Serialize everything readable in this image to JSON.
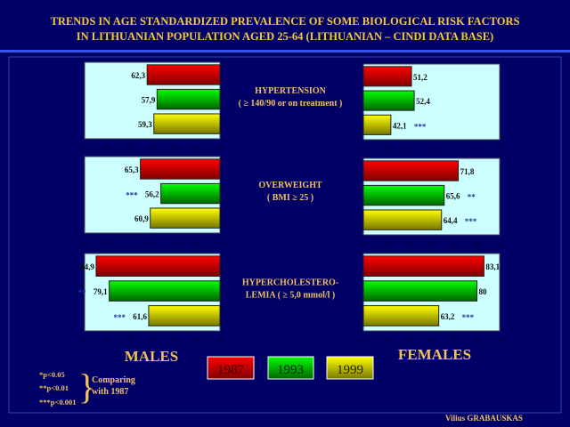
{
  "title": {
    "line1": "TRENDS IN AGE STANDARDIZED PREVALENCE OF SOME BIOLOGICAL RISK FACTORS",
    "line2": "IN LITHUANIAN POPULATION AGED 25-64 (LITHUANIAN – CINDI DATA BASE)"
  },
  "colors": {
    "background": "#000066",
    "title": "#f5c842",
    "y1987": "#e00000",
    "y1993": "#00dd00",
    "y1999": "#eeee00",
    "plot_bg": "#ccffff"
  },
  "labels": {
    "males": "MALES",
    "females": "FEMALES",
    "sig1": "*p<0.05",
    "sig2": "**p<0.01",
    "sig3": "***p<0.001",
    "compare1": "Comparing",
    "compare2": "with 1987",
    "author": "Vilius GRABAUSKAS"
  },
  "legend": [
    "1987",
    "1993",
    "1999"
  ],
  "chart_data": [
    {
      "type": "bar",
      "orientation": "horizontal",
      "panel": "males",
      "factor": "hypertension",
      "label1": "HYPERTENSION",
      "label2": "( ≥ 140/90 or on treatment )",
      "categories": [
        "1987",
        "1993",
        "1999"
      ],
      "values": [
        62.3,
        57.9,
        59.3
      ],
      "value_labels": [
        "62,3",
        "57,9",
        "59,3"
      ],
      "significance": [
        "",
        "",
        ""
      ],
      "xlim": [
        90,
        30
      ],
      "ticks": [
        90,
        80,
        70,
        60,
        50,
        40,
        30
      ]
    },
    {
      "type": "bar",
      "orientation": "horizontal",
      "panel": "males",
      "factor": "overweight",
      "label1": "OVERWEIGHT",
      "label2": "( BMI ≥ 25 )",
      "categories": [
        "1987",
        "1993",
        "1999"
      ],
      "values": [
        65.3,
        56.2,
        60.9
      ],
      "value_labels": [
        "65,3",
        "56,2",
        "60,9"
      ],
      "significance": [
        "",
        "***",
        ""
      ],
      "xlim": [
        90,
        30
      ],
      "ticks": [
        90,
        80,
        70,
        60,
        50,
        40,
        30
      ]
    },
    {
      "type": "bar",
      "orientation": "horizontal",
      "panel": "males",
      "factor": "hypercholesterolemia",
      "label1": "HYPERCHOLESTERO-",
      "label2": "LEMIA   ( ≥ 5,0 mmol/l )",
      "categories": [
        "1987",
        "1993",
        "1999"
      ],
      "values": [
        84.9,
        79.1,
        61.6
      ],
      "value_labels": [
        "84,9",
        "79,1",
        "61,6"
      ],
      "significance": [
        "",
        "**",
        "***"
      ],
      "xlim": [
        90,
        30
      ],
      "ticks": [
        90,
        80,
        70,
        60,
        50,
        40,
        30
      ]
    },
    {
      "type": "bar",
      "orientation": "horizontal",
      "panel": "females",
      "factor": "hypertension",
      "categories": [
        "1987",
        "1993",
        "1999"
      ],
      "values": [
        51.2,
        52.4,
        42.1
      ],
      "value_labels": [
        "51,2",
        "52,4",
        "42,1"
      ],
      "significance": [
        "",
        "",
        "***"
      ],
      "xlim": [
        30,
        90
      ],
      "ticks": [
        30,
        40,
        50,
        60,
        70,
        80,
        90
      ]
    },
    {
      "type": "bar",
      "orientation": "horizontal",
      "panel": "females",
      "factor": "overweight",
      "categories": [
        "1987",
        "1993",
        "1999"
      ],
      "values": [
        71.8,
        65.6,
        64.4
      ],
      "value_labels": [
        "71,8",
        "65,6",
        "64,4"
      ],
      "significance": [
        "",
        "**",
        "***"
      ],
      "xlim": [
        30,
        90
      ],
      "ticks": [
        30,
        40,
        50,
        60,
        70,
        80,
        90
      ]
    },
    {
      "type": "bar",
      "orientation": "horizontal",
      "panel": "females",
      "factor": "hypercholesterolemia",
      "categories": [
        "1987",
        "1993",
        "1999"
      ],
      "values": [
        83.1,
        80,
        63.2
      ],
      "value_labels": [
        "83,1",
        "80",
        "63,2"
      ],
      "significance": [
        "",
        "",
        "***"
      ],
      "xlim": [
        30,
        90
      ],
      "ticks": [
        30,
        40,
        50,
        60,
        70,
        80,
        90
      ]
    }
  ]
}
